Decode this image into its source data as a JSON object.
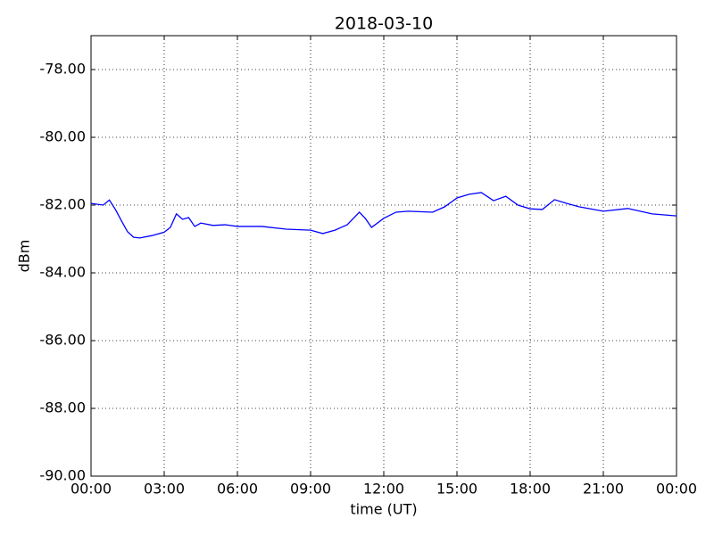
{
  "chart_data": {
    "type": "line",
    "title": "2018-03-10",
    "xlabel": "time (UT)",
    "ylabel": "dBm",
    "x": [
      0,
      0.5,
      0.75,
      1.0,
      1.25,
      1.5,
      1.75,
      2.0,
      2.5,
      3.0,
      3.25,
      3.5,
      3.75,
      4.0,
      4.25,
      4.5,
      5.0,
      5.5,
      6.0,
      7.0,
      8.0,
      9.0,
      9.5,
      10.0,
      10.5,
      11.0,
      11.25,
      11.5,
      12.0,
      12.5,
      13.0,
      14.0,
      14.5,
      15.0,
      15.5,
      16.0,
      16.5,
      17.0,
      17.5,
      18.0,
      18.5,
      19.0,
      19.5,
      20.0,
      21.0,
      22.0,
      23.0,
      24.0
    ],
    "series": [
      {
        "name": "dBm",
        "color": "#0000ff",
        "values": [
          -81.95,
          -82.0,
          -81.85,
          -82.13,
          -82.47,
          -82.79,
          -82.95,
          -82.97,
          -82.9,
          -82.8,
          -82.66,
          -82.26,
          -82.42,
          -82.37,
          -82.63,
          -82.53,
          -82.6,
          -82.58,
          -82.63,
          -82.63,
          -82.71,
          -82.74,
          -82.84,
          -82.74,
          -82.58,
          -82.21,
          -82.4,
          -82.66,
          -82.39,
          -82.21,
          -82.18,
          -82.21,
          -82.05,
          -81.79,
          -81.68,
          -81.63,
          -81.87,
          -81.74,
          -82.0,
          -82.11,
          -82.13,
          -81.84,
          -81.95,
          -82.05,
          -82.18,
          -82.1,
          -82.26,
          -82.32
        ]
      }
    ],
    "xlim": [
      0,
      24
    ],
    "xticks": [
      {
        "value": 0,
        "label": "00:00"
      },
      {
        "value": 3,
        "label": "03:00"
      },
      {
        "value": 6,
        "label": "06:00"
      },
      {
        "value": 9,
        "label": "09:00"
      },
      {
        "value": 12,
        "label": "12:00"
      },
      {
        "value": 15,
        "label": "15:00"
      },
      {
        "value": 18,
        "label": "18:00"
      },
      {
        "value": 21,
        "label": "21:00"
      },
      {
        "value": 24,
        "label": "00:00"
      }
    ],
    "ylim": [
      -90,
      -77
    ],
    "yticks": [
      {
        "value": -90,
        "label": "-90.00"
      },
      {
        "value": -88,
        "label": "-88.00"
      },
      {
        "value": -86,
        "label": "-86.00"
      },
      {
        "value": -84,
        "label": "-84.00"
      },
      {
        "value": -82,
        "label": "-82.00"
      },
      {
        "value": -80,
        "label": "-80.00"
      },
      {
        "value": -78,
        "label": "-78.00"
      }
    ],
    "grid": true
  }
}
